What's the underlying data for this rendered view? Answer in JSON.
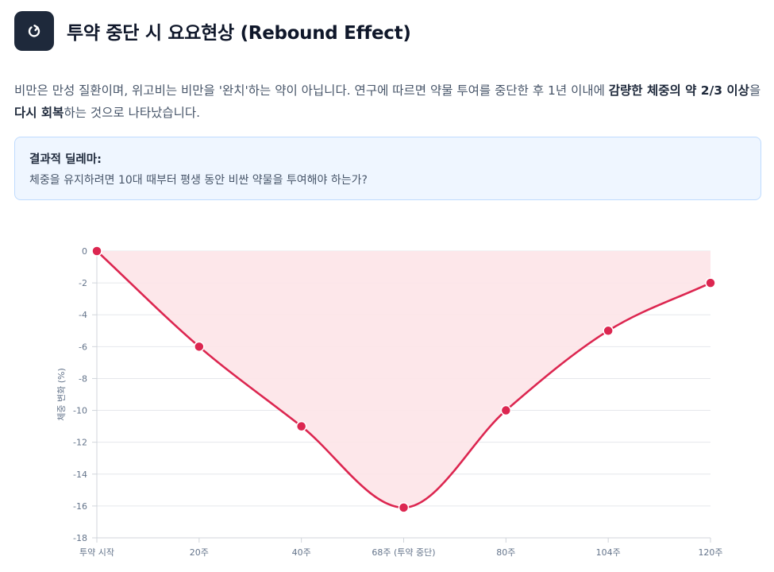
{
  "header": {
    "title": "투약 중단 시 요요현상 (Rebound Effect)",
    "icon": "rebound-arrow-icon"
  },
  "intro": {
    "part1": "비만은 만성 질환이며, 위고비는 비만을 '완치'하는 약이 아닙니다. 연구에 따르면 약물 투여를 중단한 후 1년 이내에 ",
    "bold1": "감량한 체중의 약 2/3 이상",
    "part2": "을 ",
    "bold2": "다시 회복",
    "part3": "하는 것으로 나타났습니다."
  },
  "callout": {
    "title": "결과적 딜레마:",
    "text": "체중을 유지하려면 10대 때부터 평생 동안 비싼 약물을 투여해야 하는가?"
  },
  "colors": {
    "accent": "#dc2650",
    "fill": "#fde4e8",
    "icon_bg": "#1e293b",
    "callout_bg": "#eff6ff"
  },
  "chart_data": {
    "type": "area",
    "categories": [
      "투약 시작",
      "20주",
      "40주",
      "68주 (투약 중단)",
      "80주",
      "104주",
      "120주"
    ],
    "values": [
      0,
      -6,
      -11,
      -16.1,
      -10,
      -5,
      -2
    ],
    "ylabel": "체중 변화 (%)",
    "xlabel": "",
    "ylim": [
      -18,
      0
    ],
    "yticks": [
      0,
      -2,
      -4,
      -6,
      -8,
      -10,
      -12,
      -14,
      -16,
      -18
    ],
    "grid": true,
    "legend": "none"
  }
}
